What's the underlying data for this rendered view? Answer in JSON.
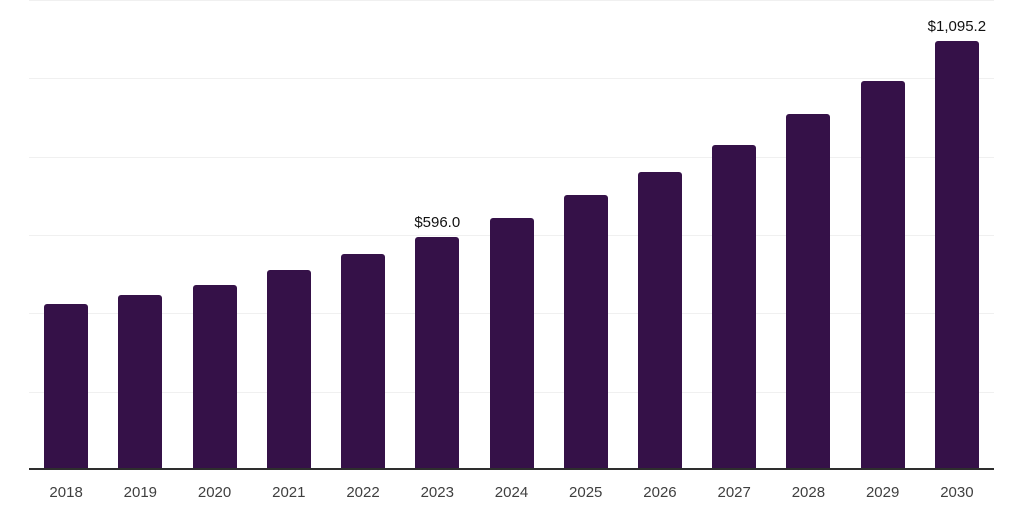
{
  "chart_data": {
    "type": "bar",
    "title": "",
    "xlabel": "",
    "ylabel": "",
    "categories": [
      "2018",
      "2019",
      "2020",
      "2021",
      "2022",
      "2023",
      "2024",
      "2025",
      "2026",
      "2027",
      "2028",
      "2029",
      "2030"
    ],
    "values": [
      423.5,
      447.0,
      472.5,
      511.5,
      551.5,
      596.0,
      644.5,
      701.0,
      762.0,
      830.5,
      908.5,
      992.5,
      1095.2
    ],
    "data_labels": [
      {
        "category": "2023",
        "text": "$596.0"
      },
      {
        "category": "2030",
        "text": "$1,095.2"
      }
    ],
    "ylim": [
      0,
      1200
    ],
    "gridline_step": 200,
    "grid": true,
    "legend": false,
    "y_tick_labels_visible": false
  },
  "style": {
    "bar_color": "#351148",
    "gridline_color": "#f0f0f0",
    "axis_line_color": "#2e2e2e",
    "x_tick_label_color": "#3f3f3f",
    "data_label_color": "#111111",
    "background_color": "#ffffff"
  }
}
